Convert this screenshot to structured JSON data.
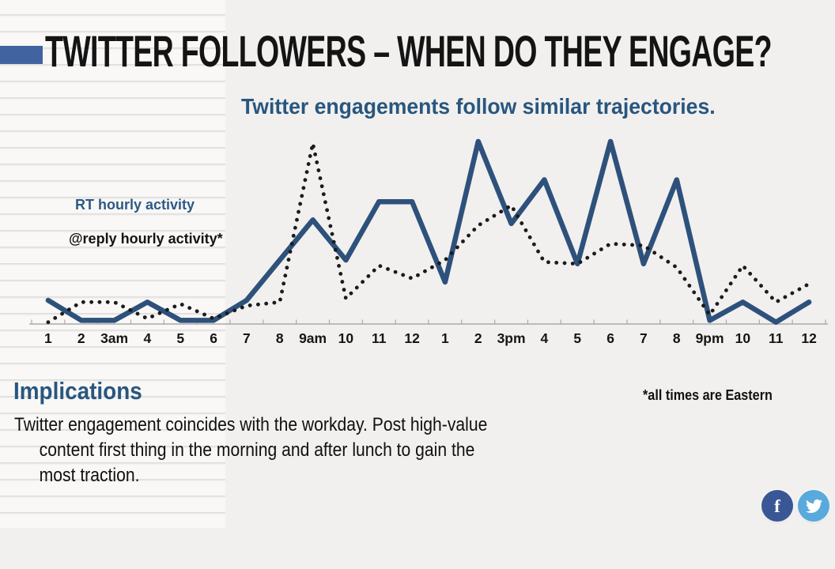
{
  "slide": {
    "title": "TWITTER FOLLOWERS – WHEN DO THEY ENGAGE?",
    "subtitle": "Twitter engagements follow similar trajectories.",
    "implications_heading": "Implications",
    "implications_lines": [
      "Twitter engagement coincides with the workday. Post high-value",
      "content first thing in the morning and after lunch to gain the",
      "most traction."
    ],
    "footnote": "*all times are Eastern"
  },
  "legend": {
    "rt_label": "RT hourly activity",
    "reply_label": "@reply hourly activity*"
  },
  "social": {
    "facebook_glyph": "f",
    "buttons": [
      "facebook",
      "twitter"
    ]
  },
  "colors": {
    "accent_bar": "#41639f",
    "heading_blue": "#28567f",
    "line_blue": "#2e517c",
    "dot_black": "#1b1b1b",
    "axis_gray": "#a9a9a9",
    "tick_label": "#151515",
    "facebook_blue": "#3a5795",
    "twitter_blue": "#58a9dc",
    "panel_gray": "#f1f0ee",
    "paper_white": "#f9f8f6"
  },
  "chart_data": {
    "type": "line",
    "title": "Twitter engagements follow similar trajectories.",
    "x_labels": [
      "1",
      "2",
      "3am",
      "4",
      "5",
      "6",
      "7",
      "8",
      "9am",
      "10",
      "11",
      "12",
      "1",
      "2",
      "3pm",
      "4",
      "5",
      "6",
      "7",
      "8",
      "9pm",
      "10",
      "11",
      "12"
    ],
    "ylim": [
      0,
      105
    ],
    "y_axis_visible": false,
    "grid": false,
    "legend_position": "left",
    "series": [
      {
        "name": "RT hourly activity",
        "style": "solid",
        "color": "#2e517c",
        "values": [
          13,
          2,
          2,
          12,
          2,
          2,
          13,
          35,
          57,
          35,
          67,
          67,
          23,
          100,
          55,
          79,
          33,
          100,
          33,
          79,
          2,
          12,
          1,
          12
        ]
      },
      {
        "name": "@reply hourly activity*",
        "style": "dotted",
        "color": "#1b1b1b",
        "values": [
          1,
          12,
          12,
          3,
          11,
          3,
          10,
          12,
          99,
          14,
          32,
          25,
          35,
          54,
          65,
          34,
          33,
          44,
          43,
          31,
          5,
          32,
          12,
          22
        ]
      }
    ]
  }
}
